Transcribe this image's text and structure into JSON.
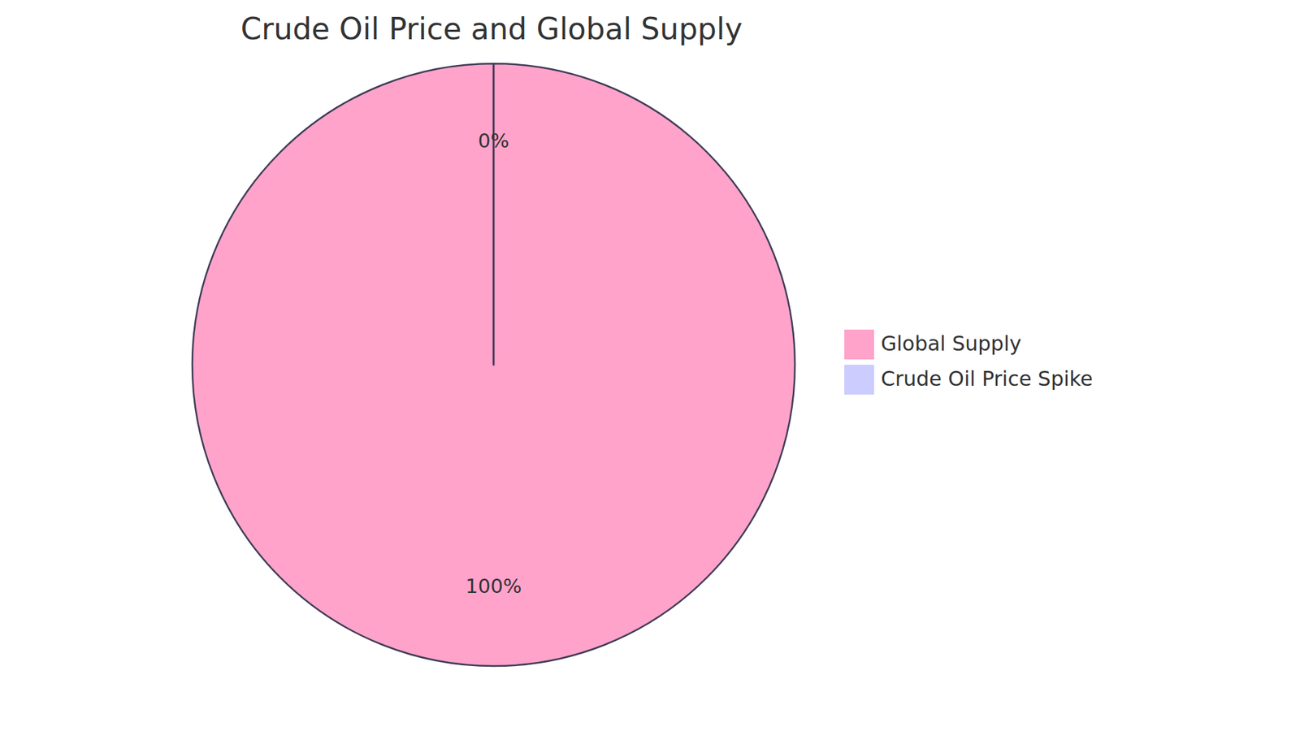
{
  "chart_data": {
    "type": "pie",
    "title": "Crude Oil Price and Global Supply",
    "categories": [
      "Global Supply",
      "Crude Oil Price Spike"
    ],
    "values": [
      100,
      0
    ],
    "value_labels": [
      "100%",
      "0%"
    ],
    "colors": [
      "#ffa3cb",
      "#ccccff"
    ],
    "data_labels": true,
    "legend": "right"
  }
}
